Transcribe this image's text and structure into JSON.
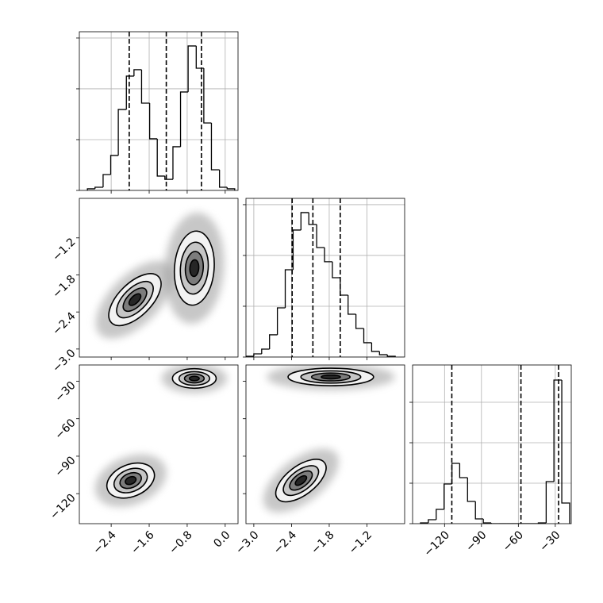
{
  "chart_data": [
    {
      "type": "histogram",
      "bins": [
        -2.9,
        -2.74,
        -2.57,
        -2.41,
        -2.25,
        -2.08,
        -1.92,
        -1.76,
        -1.59,
        -1.43,
        -1.27,
        -1.1,
        -0.94,
        -0.78,
        -0.61,
        -0.45,
        -0.29,
        -0.12,
        0.04,
        0.2
      ],
      "counts": [
        16,
        31,
        156,
        344,
        797,
        1125,
        1188,
        859,
        508,
        141,
        109,
        430,
        969,
        1422,
        1203,
        664,
        203,
        31,
        16
      ],
      "quantiles": [
        -2.02,
        -1.24,
        -0.5
      ],
      "xlim": [
        -3.07,
        0.27
      ],
      "ylim": [
        0,
        1562
      ],
      "xticks": [
        -2.4,
        -1.6,
        -0.8,
        0
      ],
      "yticks": [
        0,
        500,
        1000,
        1500
      ],
      "grid": true
    },
    {
      "type": "contour",
      "blobs": [
        {
          "cx": -1.9,
          "cy": -2.2,
          "sx": 0.275,
          "sy": 0.21,
          "rho": 0.6,
          "levels": [
            3,
            2,
            1.4,
            0.9,
            0.45
          ]
        },
        {
          "cx": -0.65,
          "cy": -1.69,
          "sx": 0.21,
          "sy": 0.3,
          "rho": 0.1,
          "levels": [
            3,
            2,
            1.4,
            0.9,
            0.45
          ]
        }
      ],
      "xlim": [
        -3.07,
        0.27
      ],
      "ylim": [
        -3.13,
        -0.56
      ],
      "xticks": [
        -2.4,
        -1.6,
        -0.8,
        0
      ],
      "yticks": [
        {
          "value": -1.2,
          "label": "−1.2"
        },
        {
          "value": -1.8,
          "label": "−1.8"
        },
        {
          "value": -2.4,
          "label": "−2.4"
        },
        {
          "value": -3.0,
          "label": "−3.0"
        }
      ],
      "grid": false
    },
    {
      "type": "histogram",
      "bins": [
        -3.125,
        -3.0,
        -2.875,
        -2.75,
        -2.625,
        -2.5,
        -2.375,
        -2.25,
        -2.125,
        -2.0,
        -1.875,
        -1.75,
        -1.625,
        -1.5,
        -1.375,
        -1.25,
        -1.125,
        -1.0,
        -0.875,
        -0.75
      ],
      "counts": [
        8,
        31,
        78,
        219,
        484,
        859,
        1250,
        1422,
        1305,
        1078,
        938,
        781,
        609,
        422,
        281,
        141,
        55,
        23,
        8
      ],
      "quantiles": [
        -2.39,
        -2.06,
        -1.625
      ],
      "xlim": [
        -3.125,
        -0.6
      ],
      "ylim": [
        0,
        1562
      ],
      "xticks": [
        -3.0,
        -2.4,
        -1.8,
        -1.2
      ],
      "yticks": [
        0,
        500,
        1000,
        1500
      ],
      "grid": true
    },
    {
      "type": "contour",
      "blobs": [
        {
          "cx": -1.99,
          "cy": -109.5,
          "sx": 0.25,
          "sy": 7,
          "rho": 0.3,
          "levels": [
            3,
            2,
            1.4,
            0.9,
            0.45
          ]
        },
        {
          "cx": -0.65,
          "cy": -27.8,
          "sx": 0.23,
          "sy": 3.9,
          "rho": 0,
          "levels": [
            3,
            2,
            1.4,
            0.9,
            0.45
          ]
        }
      ],
      "xlim": [
        -3.07,
        0.27
      ],
      "ylim": [
        -144,
        -17
      ],
      "xticks": [
        {
          "value": -2.4,
          "label": "−2.4"
        },
        {
          "value": -1.6,
          "label": "−1.6"
        },
        {
          "value": -0.8,
          "label": "−0.8"
        },
        {
          "value": 0,
          "label": "0.0"
        }
      ],
      "yticks": [
        {
          "value": -30,
          "label": "−30"
        },
        {
          "value": -60,
          "label": "−60"
        },
        {
          "value": -90,
          "label": "−90"
        },
        {
          "value": -120,
          "label": "−120"
        }
      ],
      "grid": false
    },
    {
      "type": "contour",
      "blobs": [
        {
          "cx": -2.25,
          "cy": -109.5,
          "sx": 0.2,
          "sy": 8.5,
          "rho": 0.6,
          "levels": [
            3,
            2,
            1.4,
            0.9,
            0.45
          ]
        },
        {
          "cx": -1.775,
          "cy": -26.6,
          "sx": 0.34,
          "sy": 3.5,
          "rho": 0,
          "levels": [
            3,
            2,
            1.4,
            0.9,
            0.45
          ]
        }
      ],
      "xlim": [
        -3.125,
        -0.6
      ],
      "ylim": [
        -144,
        -17
      ],
      "xticks": [
        {
          "value": -3.0,
          "label": "−3.0"
        },
        {
          "value": -2.4,
          "label": "−2.4"
        },
        {
          "value": -1.8,
          "label": "−1.8"
        },
        {
          "value": -1.2,
          "label": "−1.2"
        }
      ],
      "yticks": [
        -30,
        -60,
        -90,
        -120
      ],
      "grid": false
    },
    {
      "type": "histogram",
      "bins": [
        -139.6,
        -133.2,
        -126.8,
        -120.4,
        -114.0,
        -107.7,
        -101.3,
        -94.9,
        -88.5,
        -82.1,
        -75.7,
        -69.4,
        -63.0,
        -56.6,
        -50.2,
        -43.8,
        -37.4,
        -31.1,
        -24.7,
        -18.3
      ],
      "counts": [
        20,
        98,
        353,
        980,
        1490,
        1137,
        549,
        118,
        20,
        0,
        0,
        0,
        0,
        0,
        0,
        20,
        1039,
        3549,
        510
      ],
      "quantiles": [
        -114.1,
        -57.9,
        -27.3
      ],
      "xlim": [
        -146,
        -17
      ],
      "ylim": [
        0,
        3922
      ],
      "xticks": [
        {
          "value": -120,
          "label": "−120"
        },
        {
          "value": -90,
          "label": "−90"
        },
        {
          "value": -60,
          "label": "−60"
        },
        {
          "value": -30,
          "label": "−30"
        }
      ],
      "yticks": [
        0,
        1000,
        2000,
        3000
      ],
      "grid": true
    }
  ]
}
